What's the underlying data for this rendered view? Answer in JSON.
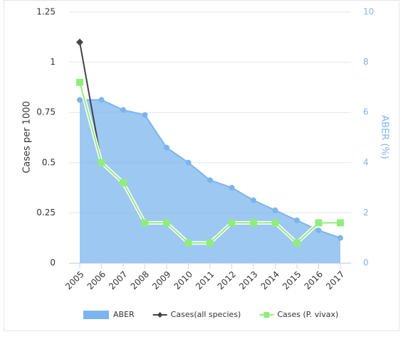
{
  "chart_data": {
    "type": "line",
    "categories": [
      "2005",
      "2006",
      "2007",
      "2008",
      "2009",
      "2010",
      "2011",
      "2012",
      "2013",
      "2014",
      "2015",
      "2016",
      "2017"
    ],
    "series": [
      {
        "name": "ABER",
        "type": "area",
        "axis": "y2",
        "color": "#7cb5ec",
        "values": [
          6.5,
          6.5,
          6.1,
          5.9,
          4.6,
          4.0,
          3.3,
          3.0,
          2.5,
          2.1,
          1.7,
          1.3,
          1.0
        ]
      },
      {
        "name": "Cases(all species)",
        "type": "line",
        "color": "#434348",
        "marker": "diamond",
        "values": [
          1.1,
          0.5,
          null,
          null,
          null,
          null,
          null,
          null,
          null,
          null,
          null,
          null,
          null
        ]
      },
      {
        "name": "Cases (P. vivax)",
        "type": "line",
        "color": "#90ed7d",
        "marker": "square",
        "values": [
          0.9,
          0.5,
          0.4,
          0.2,
          0.2,
          0.1,
          0.1,
          0.2,
          0.2,
          0.2,
          0.1,
          0.2,
          0.2
        ]
      }
    ],
    "ylabel": "Cases per 1000",
    "y2label": "ABER (%)",
    "ylim": [
      0,
      1.25
    ],
    "yticks": [
      0,
      0.25,
      0.5,
      0.75,
      1,
      1.25
    ],
    "y2lim": [
      0,
      10
    ],
    "y2ticks": [
      0,
      2,
      4,
      6,
      8,
      10
    ],
    "grid": true,
    "legend": "bottom"
  }
}
